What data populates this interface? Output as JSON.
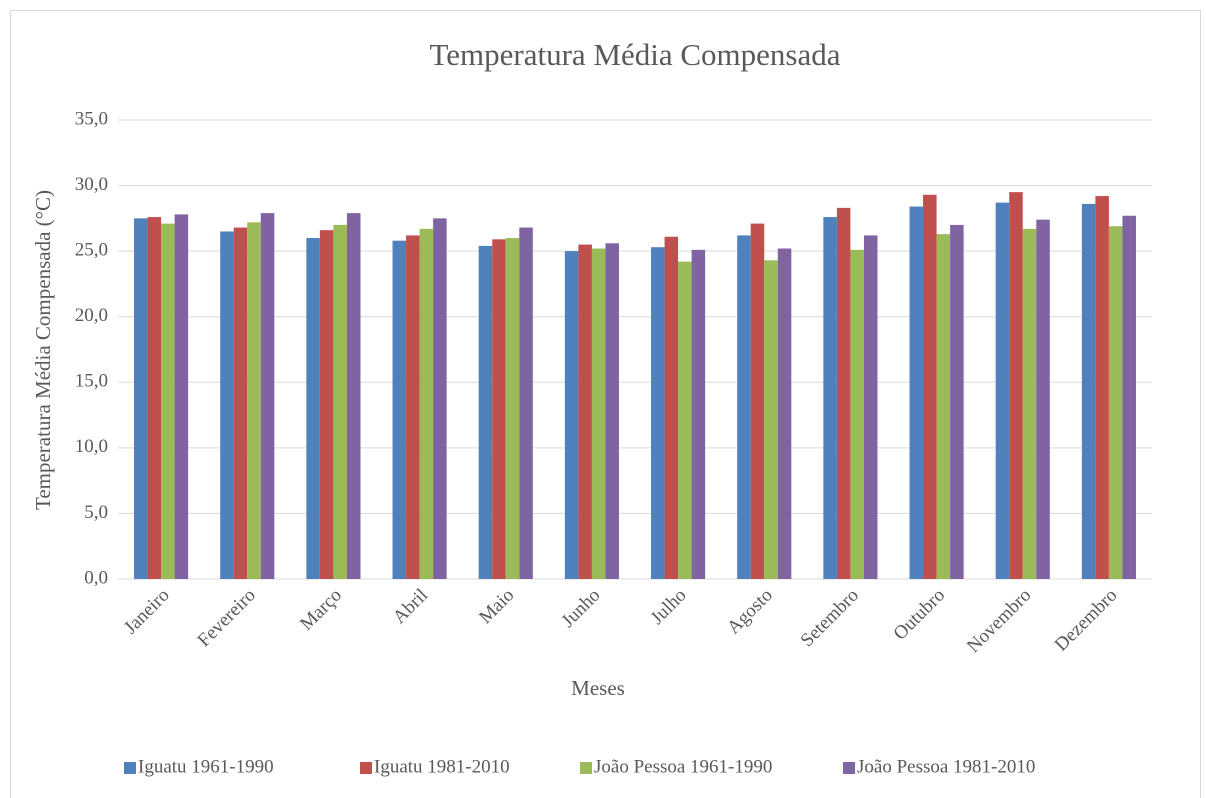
{
  "chart_data": {
    "type": "bar",
    "title": "Temperatura Média Compensada",
    "x_label": "Meses",
    "y_label": "Temperatura Média Compensada (°C)",
    "categories": [
      "Janeiro",
      "Fevereiro",
      "Março",
      "Abril",
      "Maio",
      "Junho",
      "Julho",
      "Agosto",
      "Setembro",
      "Outubro",
      "Novembro",
      "Dezembro"
    ],
    "series": [
      {
        "name": "Iguatu 1961-1990",
        "color": "#4f81bd",
        "values": [
          27.5,
          26.5,
          26.0,
          25.8,
          25.4,
          25.0,
          25.3,
          26.2,
          27.6,
          28.4,
          28.7,
          28.6
        ]
      },
      {
        "name": "Iguatu 1981-2010",
        "color": "#c0504d",
        "values": [
          27.6,
          26.8,
          26.6,
          26.2,
          25.9,
          25.5,
          26.1,
          27.1,
          28.3,
          29.3,
          29.5,
          29.2
        ]
      },
      {
        "name": "João Pessoa 1961-1990",
        "color": "#9bbb59",
        "values": [
          27.1,
          27.2,
          27.0,
          26.7,
          26.0,
          25.2,
          24.2,
          24.3,
          25.1,
          26.3,
          26.7,
          26.9
        ]
      },
      {
        "name": "João Pessoa 1981-2010",
        "color": "#8064a2",
        "values": [
          27.8,
          27.9,
          27.9,
          27.5,
          26.8,
          25.6,
          25.1,
          25.2,
          26.2,
          27.0,
          27.4,
          27.7
        ]
      }
    ],
    "ylim": [
      0,
      35
    ],
    "yticks": [
      {
        "value": 0,
        "label": "0,0"
      },
      {
        "value": 5,
        "label": "5,0"
      },
      {
        "value": 10,
        "label": "10,0"
      },
      {
        "value": 15,
        "label": "15,0"
      },
      {
        "value": 20,
        "label": "20,0"
      },
      {
        "value": 25,
        "label": "25,0"
      },
      {
        "value": 30,
        "label": "30,0"
      },
      {
        "value": 35,
        "label": "35,0"
      }
    ],
    "grid": true,
    "legend": "bottom"
  }
}
